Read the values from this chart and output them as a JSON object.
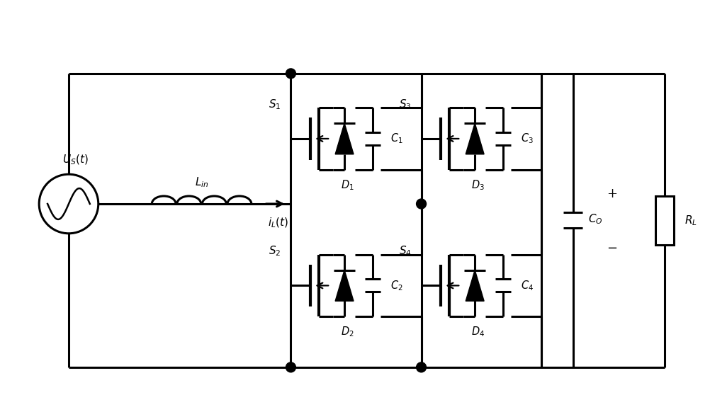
{
  "bg_color": "#ffffff",
  "lw": 2.2,
  "lw_heavy": 3.0,
  "labels": {
    "Us": "$U_S(t)$",
    "Lin": "$L_{in}$",
    "iL": "$i_L(t)$",
    "S1": "$S_1$",
    "S2": "$S_2$",
    "S3": "$S_3$",
    "S4": "$S_4$",
    "D1": "$D_1$",
    "D2": "$D_2$",
    "D3": "$D_3$",
    "D4": "$D_4$",
    "C1": "$C_1$",
    "C2": "$C_2$",
    "C3": "$C_3$",
    "C4": "$C_4$",
    "Co": "$C_O$",
    "RL": "$R_L$",
    "plus": "+",
    "minus": "−"
  }
}
